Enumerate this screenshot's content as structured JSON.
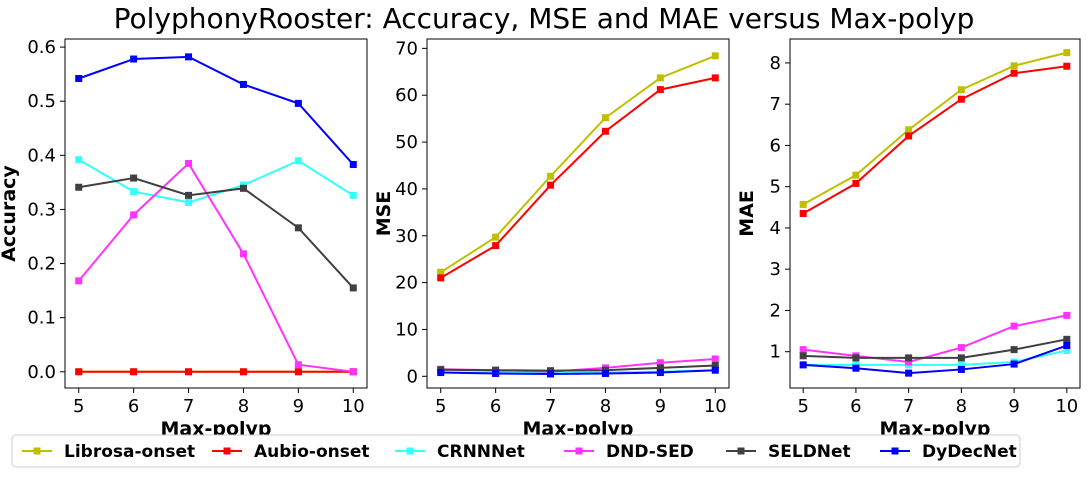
{
  "title": "PolyphonyRooster: Accuracy, MSE and MAE versus Max-polyp",
  "colors": {
    "Librosa-onset": "#bfbf00",
    "Aubio-onset": "#ff0000",
    "CRNNNet": "#33ffff",
    "DND-SED": "#ff33ff",
    "SELDNet": "#404040",
    "DyDecNet": "#0000ff"
  },
  "legend": {
    "placement": "bottom-center",
    "entries": [
      "Librosa-onset",
      "Aubio-onset",
      "CRNNNet",
      "DND-SED",
      "SELDNet",
      "DyDecNet"
    ]
  },
  "chart_data": [
    {
      "type": "line",
      "xlabel": "Max-polyp",
      "ylabel": "Accuracy",
      "x": [
        5,
        6,
        7,
        8,
        9,
        10
      ],
      "xticks": [
        "5",
        "6",
        "7",
        "8",
        "9",
        "10"
      ],
      "yticks": [
        "0.0",
        "0.1",
        "0.2",
        "0.3",
        "0.4",
        "0.5",
        "0.6"
      ],
      "ylim": [
        -0.03,
        0.615
      ],
      "grid": false,
      "series": [
        {
          "name": "Librosa-onset",
          "values": [
            0.0,
            0.0,
            0.0,
            0.0,
            0.0,
            0.0
          ]
        },
        {
          "name": "Aubio-onset",
          "values": [
            0.0,
            0.0,
            0.0,
            0.0,
            0.0,
            0.0
          ]
        },
        {
          "name": "CRNNNet",
          "values": [
            0.392,
            0.333,
            0.313,
            0.345,
            0.39,
            0.326
          ]
        },
        {
          "name": "DND-SED",
          "values": [
            0.168,
            0.29,
            0.385,
            0.218,
            0.013,
            0.0
          ]
        },
        {
          "name": "SELDNet",
          "values": [
            0.341,
            0.358,
            0.326,
            0.339,
            0.266,
            0.155
          ]
        },
        {
          "name": "DyDecNet",
          "values": [
            0.542,
            0.578,
            0.582,
            0.531,
            0.496,
            0.383
          ]
        }
      ]
    },
    {
      "type": "line",
      "xlabel": "Max-polyp",
      "ylabel": "MSE",
      "x": [
        5,
        6,
        7,
        8,
        9,
        10
      ],
      "xticks": [
        "5",
        "6",
        "7",
        "8",
        "9",
        "10"
      ],
      "yticks": [
        "0",
        "10",
        "20",
        "30",
        "40",
        "50",
        "60",
        "70"
      ],
      "ylim": [
        -2.5,
        72
      ],
      "grid": false,
      "series": [
        {
          "name": "Librosa-onset",
          "values": [
            22.2,
            29.7,
            42.7,
            55.2,
            63.7,
            68.4
          ]
        },
        {
          "name": "Aubio-onset",
          "values": [
            21.0,
            27.9,
            40.8,
            52.3,
            61.2,
            63.7
          ]
        },
        {
          "name": "CRNNNet",
          "values": [
            0.8,
            0.8,
            0.7,
            0.8,
            1.0,
            1.3
          ]
        },
        {
          "name": "DND-SED",
          "values": [
            1.5,
            1.3,
            1.0,
            1.8,
            2.9,
            3.7
          ]
        },
        {
          "name": "SELDNet",
          "values": [
            1.4,
            1.3,
            1.2,
            1.3,
            1.8,
            2.3
          ]
        },
        {
          "name": "DyDecNet",
          "values": [
            0.8,
            0.6,
            0.5,
            0.6,
            0.8,
            1.3
          ]
        }
      ]
    },
    {
      "type": "line",
      "xlabel": "Max-polyp",
      "ylabel": "MAE",
      "x": [
        5,
        6,
        7,
        8,
        9,
        10
      ],
      "xticks": [
        "5",
        "6",
        "7",
        "8",
        "9",
        "10"
      ],
      "yticks": [
        "1",
        "2",
        "3",
        "4",
        "5",
        "6",
        "7",
        "8"
      ],
      "ylim": [
        0.12,
        8.58
      ],
      "grid": false,
      "series": [
        {
          "name": "Librosa-onset",
          "values": [
            4.57,
            5.28,
            6.38,
            7.35,
            7.93,
            8.25
          ]
        },
        {
          "name": "Aubio-onset",
          "values": [
            4.35,
            5.08,
            6.23,
            7.12,
            7.75,
            7.92
          ]
        },
        {
          "name": "CRNNNet",
          "values": [
            0.68,
            0.68,
            0.68,
            0.68,
            0.75,
            1.03
          ]
        },
        {
          "name": "DND-SED",
          "values": [
            1.05,
            0.9,
            0.75,
            1.1,
            1.62,
            1.88
          ]
        },
        {
          "name": "SELDNet",
          "values": [
            0.9,
            0.85,
            0.85,
            0.85,
            1.05,
            1.3
          ]
        },
        {
          "name": "DyDecNet",
          "values": [
            0.68,
            0.6,
            0.48,
            0.57,
            0.7,
            1.15
          ]
        }
      ]
    }
  ]
}
